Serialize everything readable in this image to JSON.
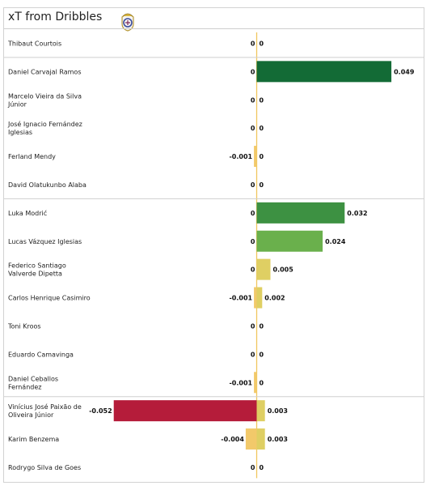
{
  "title": "xT from Dribbles",
  "crest_icon": "real-madrid-crest-icon",
  "chart_data": {
    "type": "bar",
    "title": "xT from Dribbles",
    "xlim": [
      -0.055,
      0.06
    ],
    "grid": false,
    "legend": "none",
    "players": [
      {
        "name": [
          "Thibaut Courtois"
        ],
        "neg": 0,
        "pos": 0,
        "neg_label": "0",
        "pos_label": "0"
      },
      {
        "name": [
          "Daniel Carvajal Ramos"
        ],
        "neg": 0,
        "pos": 0.049,
        "neg_label": "0",
        "pos_label": "0.049"
      },
      {
        "name": [
          "Marcelo Vieira da Silva",
          "Júnior"
        ],
        "neg": 0,
        "pos": 0,
        "neg_label": "0",
        "pos_label": "0"
      },
      {
        "name": [
          "José Ignacio Fernández",
          "Iglesias"
        ],
        "neg": 0,
        "pos": 0,
        "neg_label": "0",
        "pos_label": "0"
      },
      {
        "name": [
          "Ferland Mendy"
        ],
        "neg": -0.001,
        "pos": 0,
        "neg_label": "-0.001",
        "pos_label": "0"
      },
      {
        "name": [
          "David Olatukunbo Alaba"
        ],
        "neg": 0,
        "pos": 0,
        "neg_label": "0",
        "pos_label": "0"
      },
      {
        "name": [
          "Luka Modrić"
        ],
        "neg": 0,
        "pos": 0.032,
        "neg_label": "0",
        "pos_label": "0.032"
      },
      {
        "name": [
          "Lucas Vázquez Iglesias"
        ],
        "neg": 0,
        "pos": 0.024,
        "neg_label": "0",
        "pos_label": "0.024"
      },
      {
        "name": [
          "Federico Santiago",
          "Valverde Dipetta"
        ],
        "neg": 0,
        "pos": 0.005,
        "neg_label": "0",
        "pos_label": "0.005"
      },
      {
        "name": [
          "Carlos Henrique Casimiro"
        ],
        "neg": -0.001,
        "pos": 0.002,
        "neg_label": "-0.001",
        "pos_label": "0.002"
      },
      {
        "name": [
          "Toni Kroos"
        ],
        "neg": 0,
        "pos": 0,
        "neg_label": "0",
        "pos_label": "0"
      },
      {
        "name": [
          "Eduardo Camavinga"
        ],
        "neg": 0,
        "pos": 0,
        "neg_label": "0",
        "pos_label": "0"
      },
      {
        "name": [
          "Daniel Ceballos",
          "Fernández"
        ],
        "neg": -0.001,
        "pos": 0,
        "neg_label": "-0.001",
        "pos_label": "0"
      },
      {
        "name": [
          "Vinícius José Paixão de",
          "Oliveira Júnior"
        ],
        "neg": -0.052,
        "pos": 0.003,
        "neg_label": "-0.052",
        "pos_label": "0.003"
      },
      {
        "name": [
          "Karim Benzema"
        ],
        "neg": -0.004,
        "pos": 0.003,
        "neg_label": "-0.004",
        "pos_label": "0.003"
      },
      {
        "name": [
          "Rodrygo Silva de Goes"
        ],
        "neg": 0,
        "pos": 0,
        "neg_label": "0",
        "pos_label": "0"
      }
    ],
    "group_dividers_after": [
      0,
      5,
      12
    ],
    "colors": {
      "zero_line": "#f0c75e",
      "strong_positive": "#136b36",
      "positive": "#3d9142",
      "mild_positive": "#6ab04c",
      "small_value": "#f2c96a",
      "small_value_light": "#dfcf63",
      "strong_negative": "#b51c3a",
      "divider": "#cfcfcf"
    }
  }
}
